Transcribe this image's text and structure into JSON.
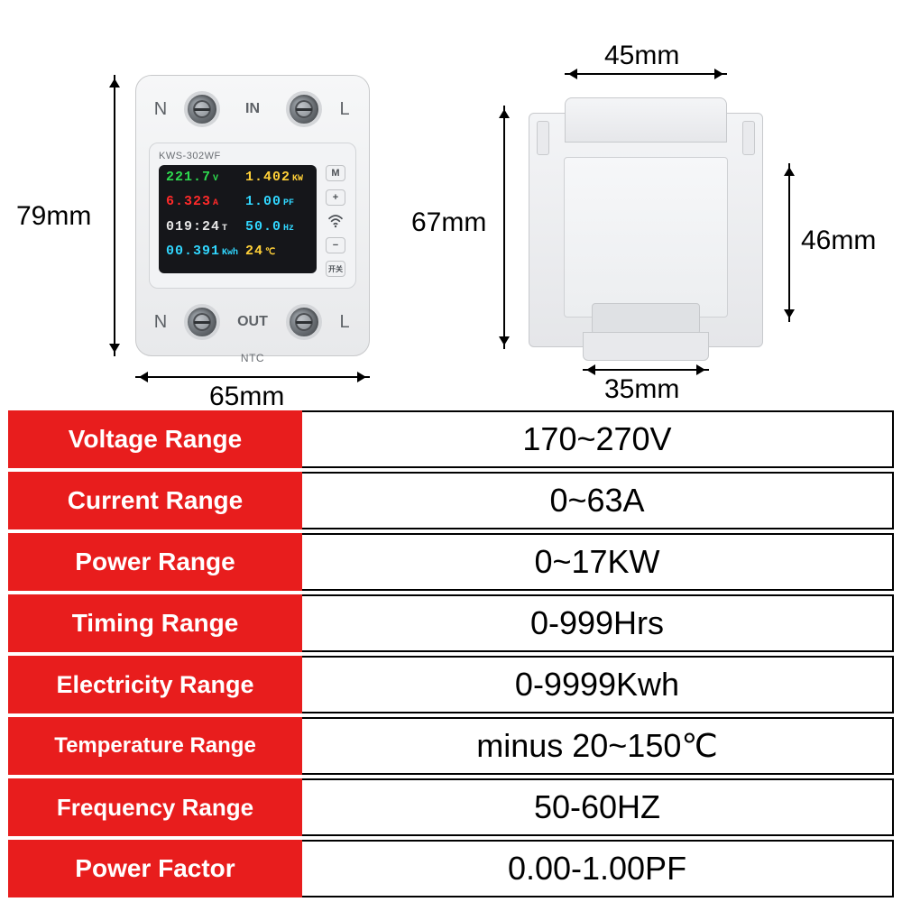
{
  "colors": {
    "accent_red": "#e81d1d",
    "text_white": "#ffffff",
    "text_black": "#000000",
    "page_bg": "#ffffff"
  },
  "device_front": {
    "model": "KWS-302WF",
    "top_row": {
      "left_label": "N",
      "badge": "IN",
      "right_label": "L"
    },
    "bottom_row": {
      "left_label": "N",
      "badge": "OUT",
      "sub": "NTC",
      "right_label": "L"
    },
    "side_buttons": [
      "M",
      "+",
      "−",
      "开关"
    ],
    "lcd": [
      {
        "value": "221.7",
        "unit": "V",
        "color": "#2edb4f"
      },
      {
        "value": "1.402",
        "unit": "KW",
        "color": "#ffd038"
      },
      {
        "value": "6.323",
        "unit": "A",
        "color": "#ff2a2a"
      },
      {
        "value": "1.00",
        "unit": "PF",
        "color": "#31d7ff"
      },
      {
        "value": "019:24",
        "unit": "T",
        "color": "#e7e7e7"
      },
      {
        "value": "50.0",
        "unit": "Hz",
        "color": "#31d7ff"
      },
      {
        "value": "00.391",
        "unit": "Kwh",
        "color": "#31d7ff"
      },
      {
        "value": "24",
        "unit": "℃",
        "color": "#ffd038"
      }
    ]
  },
  "dimensions": {
    "front_height": "79mm",
    "front_width": "65mm",
    "side_top_width": "45mm",
    "side_height_left": "67mm",
    "side_height_right": "46mm",
    "side_bottom_width": "35mm"
  },
  "spec_table": {
    "label_bg": "#e81d1d",
    "label_text_color": "#ffffff",
    "label_fontsize_default": 28,
    "value_fontsize": 36,
    "value_text_color": "#000000",
    "value_border_color": "#000000",
    "rows": [
      {
        "label": "Voltage Range",
        "value": "170~270V",
        "label_fontsize": 28
      },
      {
        "label": "Current Range",
        "value": "0~63A",
        "label_fontsize": 28
      },
      {
        "label": "Power Range",
        "value": "0~17KW",
        "label_fontsize": 28
      },
      {
        "label": "Timing Range",
        "value": "0-999Hrs",
        "label_fontsize": 28
      },
      {
        "label": "Electricity Range",
        "value": "0-9999Kwh",
        "label_fontsize": 27
      },
      {
        "label": "Temperature Range",
        "value": "minus 20~150℃",
        "label_fontsize": 24
      },
      {
        "label": "Frequency Range",
        "value": "50-60HZ",
        "label_fontsize": 26
      },
      {
        "label": "Power Factor",
        "value": "0.00-1.00PF",
        "label_fontsize": 28
      }
    ]
  }
}
